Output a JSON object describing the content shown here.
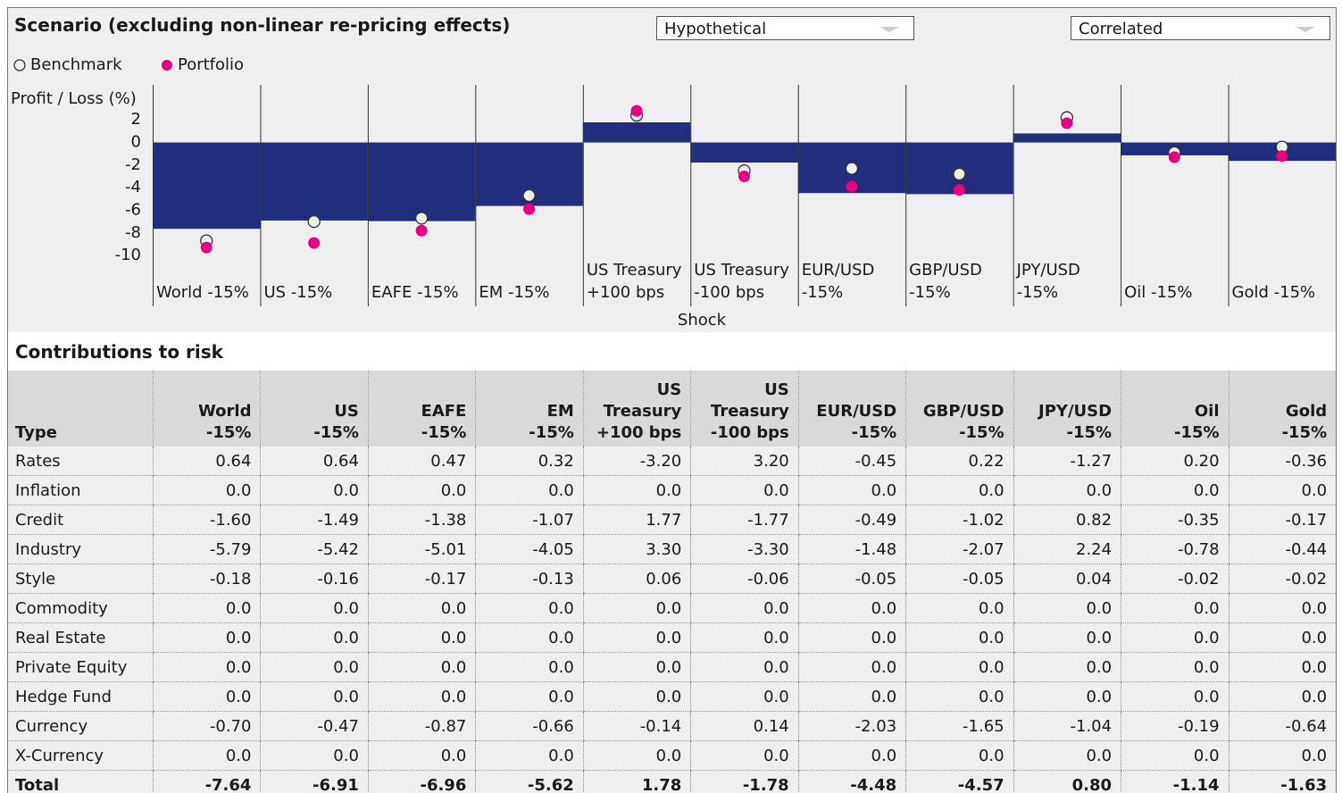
{
  "header": {
    "title": "Scenario (excluding non-linear re-pricing effects)"
  },
  "controls": {
    "scenario": "Hypothetical",
    "correlation": "Correlated"
  },
  "chart_data": {
    "type": "bar",
    "y_label": "Profit / Loss (%)",
    "x_label": "Shock",
    "categories": [
      "World -15%",
      "US -15%",
      "EAFE -15%",
      "EM -15%",
      "US Treasury +100 bps",
      "US Treasury -100 bps",
      "EUR/USD -15%",
      "GBP/USD -15%",
      "JPY/USD -15%",
      "Oil -15%",
      "Gold -15%"
    ],
    "values": [
      -7.64,
      -6.91,
      -6.96,
      -5.62,
      1.78,
      -1.78,
      -4.48,
      -4.57,
      0.8,
      -1.14,
      -1.63
    ],
    "color": "#232d7e",
    "series": [
      {
        "name": "Benchmark",
        "color": "#eeeeee",
        "values": [
          -8.7,
          -7.0,
          -6.7,
          -4.7,
          2.4,
          -2.5,
          -2.3,
          -2.8,
          2.2,
          -0.9,
          -0.4
        ]
      },
      {
        "name": "Portfolio",
        "color": "#e6007e",
        "values": [
          -9.3,
          -8.9,
          -7.8,
          -5.9,
          2.8,
          -3.0,
          -3.9,
          -4.2,
          1.7,
          -1.3,
          -1.2
        ]
      }
    ],
    "ylim": [
      -14.5,
      5.1
    ],
    "yticks": [
      2,
      0,
      -2,
      -4,
      -6,
      -8,
      -10
    ]
  },
  "table": {
    "title": "Contributions to risk",
    "columns": [
      [
        "Type"
      ],
      [
        "World",
        "-15%"
      ],
      [
        "US",
        "-15%"
      ],
      [
        "EAFE",
        "-15%"
      ],
      [
        "EM",
        "-15%"
      ],
      [
        "US",
        "Treasury",
        "+100 bps"
      ],
      [
        "US",
        "Treasury",
        "-100 bps"
      ],
      [
        "EUR/USD",
        "-15%"
      ],
      [
        "GBP/USD",
        "-15%"
      ],
      [
        "JPY/USD",
        "-15%"
      ],
      [
        "Oil",
        "-15%"
      ],
      [
        "Gold",
        "-15%"
      ]
    ],
    "rows": [
      [
        "Rates",
        "0.64",
        "0.64",
        "0.47",
        "0.32",
        "-3.20",
        "3.20",
        "-0.45",
        "0.22",
        "-1.27",
        "0.20",
        "-0.36"
      ],
      [
        "Inflation",
        "0.0",
        "0.0",
        "0.0",
        "0.0",
        "0.0",
        "0.0",
        "0.0",
        "0.0",
        "0.0",
        "0.0",
        "0.0"
      ],
      [
        "Credit",
        "-1.60",
        "-1.49",
        "-1.38",
        "-1.07",
        "1.77",
        "-1.77",
        "-0.49",
        "-1.02",
        "0.82",
        "-0.35",
        "-0.17"
      ],
      [
        "Industry",
        "-5.79",
        "-5.42",
        "-5.01",
        "-4.05",
        "3.30",
        "-3.30",
        "-1.48",
        "-2.07",
        "2.24",
        "-0.78",
        "-0.44"
      ],
      [
        "Style",
        "-0.18",
        "-0.16",
        "-0.17",
        "-0.13",
        "0.06",
        "-0.06",
        "-0.05",
        "-0.05",
        "0.04",
        "-0.02",
        "-0.02"
      ],
      [
        "Commodity",
        "0.0",
        "0.0",
        "0.0",
        "0.0",
        "0.0",
        "0.0",
        "0.0",
        "0.0",
        "0.0",
        "0.0",
        "0.0"
      ],
      [
        "Real Estate",
        "0.0",
        "0.0",
        "0.0",
        "0.0",
        "0.0",
        "0.0",
        "0.0",
        "0.0",
        "0.0",
        "0.0",
        "0.0"
      ],
      [
        "Private Equity",
        "0.0",
        "0.0",
        "0.0",
        "0.0",
        "0.0",
        "0.0",
        "0.0",
        "0.0",
        "0.0",
        "0.0",
        "0.0"
      ],
      [
        "Hedge Fund",
        "0.0",
        "0.0",
        "0.0",
        "0.0",
        "0.0",
        "0.0",
        "0.0",
        "0.0",
        "0.0",
        "0.0",
        "0.0"
      ],
      [
        "Currency",
        "-0.70",
        "-0.47",
        "-0.87",
        "-0.66",
        "-0.14",
        "0.14",
        "-2.03",
        "-1.65",
        "-1.04",
        "-0.19",
        "-0.64"
      ],
      [
        "X-Currency",
        "0.0",
        "0.0",
        "0.0",
        "0.0",
        "0.0",
        "0.0",
        "0.0",
        "0.0",
        "0.0",
        "0.0",
        "0.0"
      ]
    ],
    "total": [
      "Total",
      "-7.64",
      "-6.91",
      "-6.96",
      "-5.62",
      "1.78",
      "-1.78",
      "-4.48",
      "-4.57",
      "0.80",
      "-1.14",
      "-1.63"
    ]
  }
}
